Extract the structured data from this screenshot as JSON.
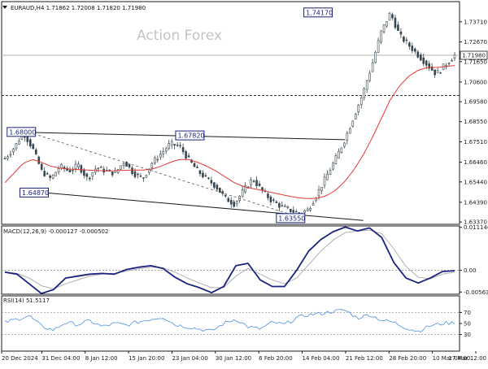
{
  "header": {
    "symbol_line": "EURAUD,H4  1.71862 1.72008 1.71820 1.71980",
    "watermark": "Action Forex"
  },
  "colors": {
    "candle": "#37474f",
    "sma": "#e53935",
    "channel": "#1a1a1a",
    "annotation_border": "#1a237e",
    "macd_line": "#1a237e",
    "macd_signal": "#b0b0b0",
    "rsi_line": "#4f90e0",
    "level_line": "#b3b3b3"
  },
  "chart_data": [
    {
      "type": "candlestick",
      "title": "EURAUD,H4",
      "ohlc_last": {
        "open": 1.71862,
        "high": 1.72008,
        "low": 1.7182,
        "close": 1.7198
      },
      "ylim": [
        1.6325,
        1.7475
      ],
      "y_ticks": [
        "1.73710",
        "1.72670",
        "1.71650",
        "1.70600",
        "1.69580",
        "1.68550",
        "1.67510",
        "1.66460",
        "1.65440",
        "1.64390",
        "1.63370"
      ],
      "x_ticks": [
        "20 Dec 2024",
        "31 Dec 04:00",
        "8 Jan 12:00",
        "15 Jan 20:00",
        "23 Jan 04:00",
        "30 Jan 12:00",
        "6 Feb 20:00",
        "14 Feb 04:00",
        "21 Feb 12:00",
        "28 Feb 20:00",
        "10 Mar 04:00",
        "17 Mar 12:00"
      ],
      "price_marker": "1.71980",
      "support_level": "1.69900",
      "annotations": [
        "1.68000",
        "1.67820",
        "1.64870",
        "1.63550",
        "1.74170"
      ],
      "close_path": [
        1.6665,
        1.672,
        1.68,
        1.672,
        1.66,
        1.656,
        1.6625,
        1.66,
        1.663,
        1.656,
        1.662,
        1.66,
        1.659,
        1.665,
        1.659,
        1.656,
        1.664,
        1.669,
        1.674,
        1.673,
        1.666,
        1.66,
        1.656,
        1.652,
        1.646,
        1.643,
        1.65,
        1.656,
        1.65,
        1.645,
        1.642,
        1.64,
        1.638,
        1.64,
        1.648,
        1.657,
        1.666,
        1.676,
        1.688,
        1.7,
        1.715,
        1.732,
        1.7417,
        1.73,
        1.725,
        1.72,
        1.715,
        1.71,
        1.715,
        1.7198
      ],
      "sma_path": [
        1.654,
        1.659,
        1.664,
        1.666,
        1.6645,
        1.6625,
        1.6615,
        1.661,
        1.6608,
        1.6605,
        1.6603,
        1.6601,
        1.6602,
        1.6604,
        1.6605,
        1.6605,
        1.661,
        1.6625,
        1.6645,
        1.666,
        1.666,
        1.6645,
        1.6625,
        1.66,
        1.657,
        1.654,
        1.652,
        1.651,
        1.65,
        1.649,
        1.648,
        1.647,
        1.6462,
        1.6458,
        1.646,
        1.6472,
        1.65,
        1.6545,
        1.6605,
        1.668,
        1.677,
        1.687,
        1.697,
        1.704,
        1.709,
        1.712,
        1.7135,
        1.7135,
        1.714,
        1.7145
      ]
    },
    {
      "type": "line",
      "title": "MACD(12,26,9) -0.000127 -0.000502",
      "ylim": [
        -0.0062,
        0.0115
      ],
      "y_ticks": [
        "0.011146",
        "0.00",
        "-0.005639"
      ],
      "series": [
        {
          "name": "MACD",
          "values": [
            -0.0005,
            -0.001,
            -0.0035,
            -0.006,
            -0.005,
            -0.002,
            -0.0015,
            -0.001,
            -0.0008,
            -0.001,
            0.0002,
            0.0008,
            0.0012,
            0.0005,
            -0.0018,
            -0.0035,
            -0.0045,
            -0.0058,
            -0.0042,
            0.0012,
            0.0018,
            -0.0025,
            -0.0042,
            -0.0042,
            0.0,
            0.005,
            0.008,
            0.01,
            0.0112,
            0.0102,
            0.011,
            0.0085,
            0.002,
            -0.002,
            -0.0033,
            -0.002,
            -0.0003,
            -0.0001
          ]
        },
        {
          "name": "Signal",
          "values": [
            -0.0004,
            -0.0008,
            -0.002,
            -0.004,
            -0.0048,
            -0.0035,
            -0.0025,
            -0.0015,
            -0.001,
            -0.0008,
            -0.0002,
            0.0004,
            0.0008,
            0.0007,
            -0.0005,
            -0.002,
            -0.0033,
            -0.0045,
            -0.0045,
            -0.0015,
            0.0005,
            -0.001,
            -0.0025,
            -0.0035,
            -0.002,
            0.0015,
            0.005,
            0.0078,
            0.0098,
            0.0102,
            0.0104,
            0.0095,
            0.0055,
            0.001,
            -0.0018,
            -0.0022,
            -0.001,
            -0.0005
          ]
        }
      ]
    },
    {
      "type": "line",
      "title": "RSI(14) 51.5117",
      "ylim": [
        0,
        100
      ],
      "y_ticks": [
        "70",
        "50",
        "30"
      ],
      "levels": [
        70,
        30
      ],
      "series": [
        {
          "name": "RSI",
          "values": [
            52,
            58,
            64,
            45,
            38,
            52,
            48,
            55,
            44,
            50,
            47,
            53,
            58,
            62,
            48,
            44,
            40,
            36,
            50,
            58,
            44,
            40,
            52,
            48,
            60,
            66,
            68,
            72,
            74,
            60,
            66,
            56,
            52,
            42,
            36,
            46,
            50,
            51.5
          ]
        }
      ]
    }
  ]
}
